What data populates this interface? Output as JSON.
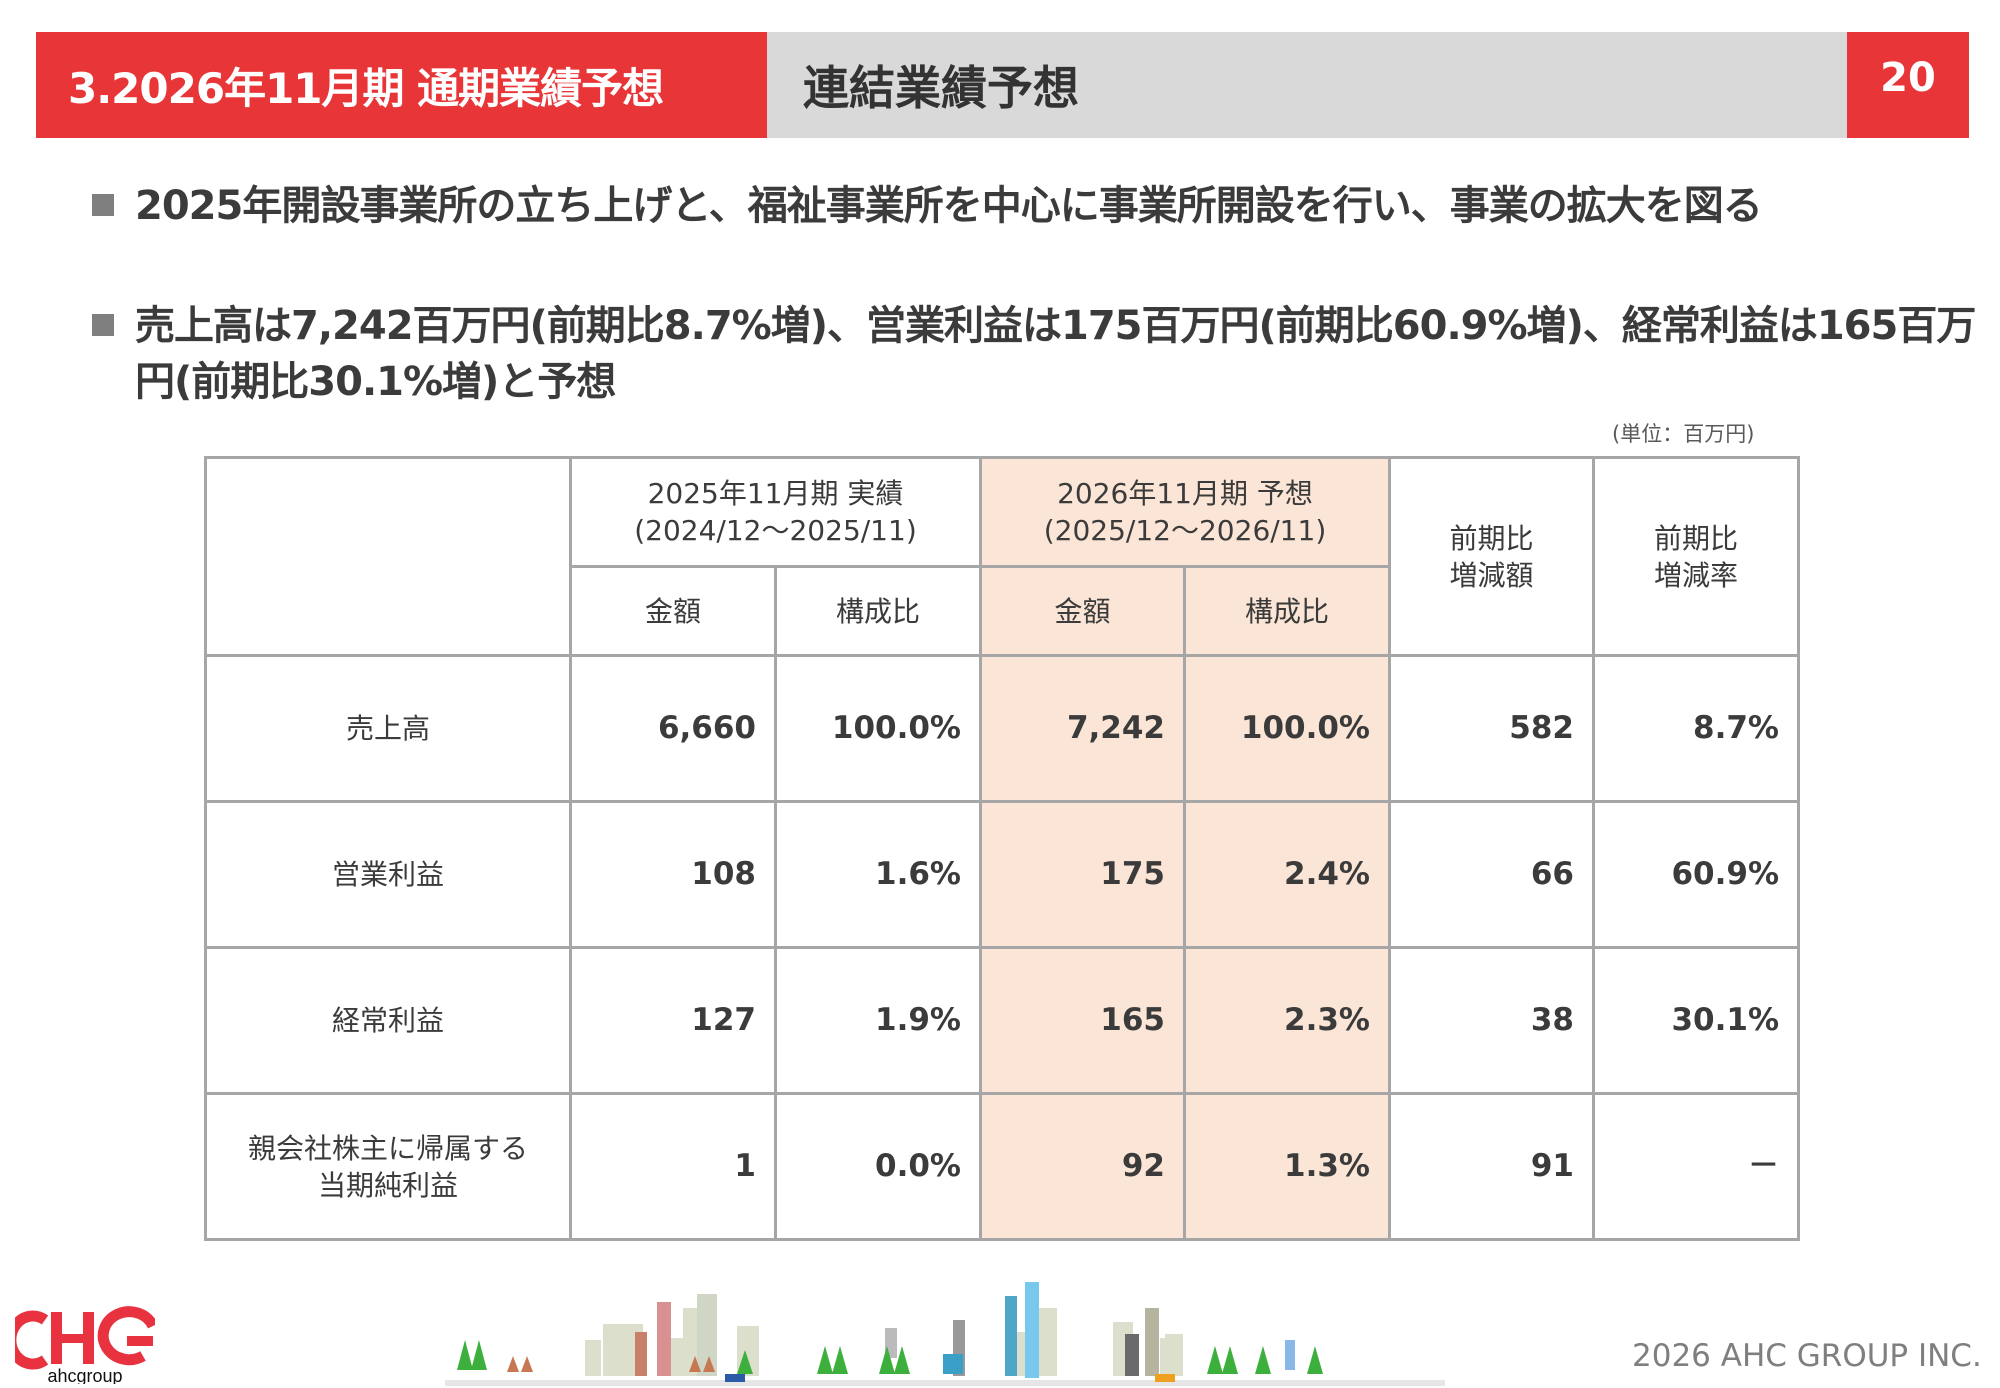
{
  "header": {
    "section": "3.2026年11月期 通期業績予想",
    "title": "連結業績予想",
    "page": "20"
  },
  "bullets": [
    "2025年開設事業所の立ち上げと、福祉事業所を中心に事業所開設を行い、事業の拡大を図る",
    "売上高は7,242百万円(前期比8.7%増)、営業利益は175百万円(前期比60.9%増)、経常利益は165百万円(前期比30.1%増)と予想"
  ],
  "unit": "(単位：百万円)",
  "table": {
    "h_actual": "2025年11月期 実績",
    "h_actual_period": "(2024/12～2025/11)",
    "h_forecast": "2026年11月期 予想",
    "h_forecast_period": "(2025/12～2026/11)",
    "h_amount": "金額",
    "h_ratio": "構成比",
    "h_diff": "前期比",
    "h_diff2": "増減額",
    "h_rate": "前期比",
    "h_rate2": "増減率",
    "rows": [
      {
        "label": "売上高",
        "label2": "",
        "a": "6,660",
        "ar": "100.0%",
        "f": "7,242",
        "fr": "100.0%",
        "d": "582",
        "r": "8.7%"
      },
      {
        "label": "営業利益",
        "label2": "",
        "a": "108",
        "ar": "1.6%",
        "f": "175",
        "fr": "2.4%",
        "d": "66",
        "r": "60.9%"
      },
      {
        "label": "経常利益",
        "label2": "",
        "a": "127",
        "ar": "1.9%",
        "f": "165",
        "fr": "2.3%",
        "d": "38",
        "r": "30.1%"
      },
      {
        "label": "親会社株主に帰属する",
        "label2": "当期純利益",
        "a": "1",
        "ar": "0.0%",
        "f": "92",
        "fr": "1.3%",
        "d": "91",
        "r": "－"
      }
    ]
  },
  "footer": {
    "logo_text": "ahcgroup",
    "copyright": "2026 AHC GROUP INC."
  },
  "colors": {
    "accent": "#e73538",
    "header_gray": "#d9d9d9",
    "forecast_fill": "#fbe5d6",
    "border": "#a6a6a6"
  }
}
